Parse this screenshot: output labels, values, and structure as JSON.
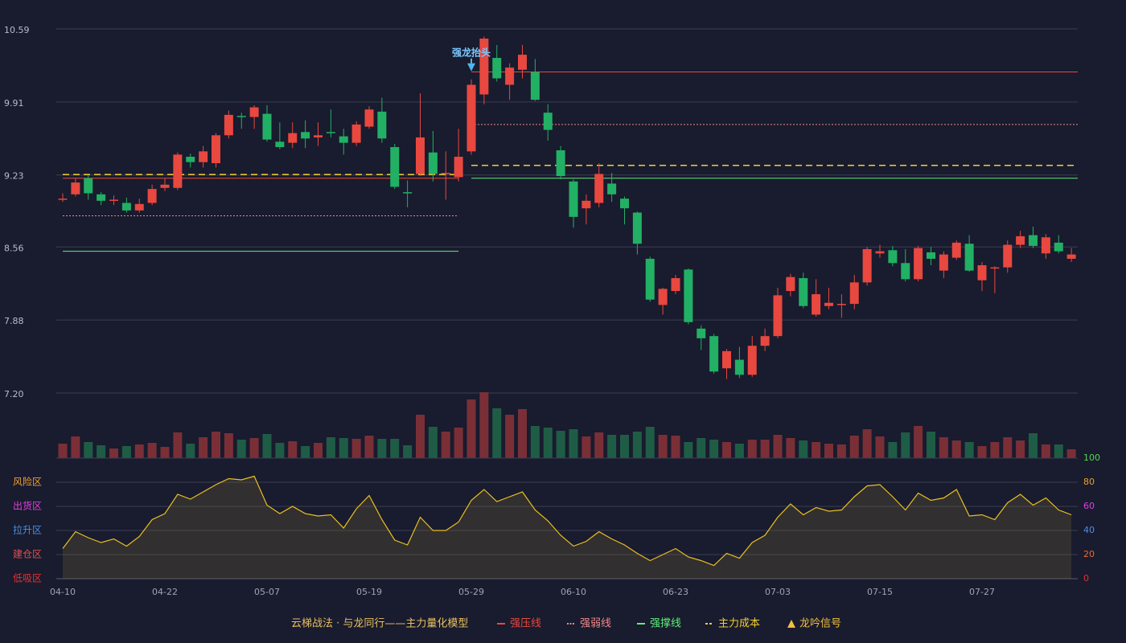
{
  "chart_data": [
    {
      "type": "candlestick",
      "title": "云梯战法 · 与龙同行——主力量化模型",
      "categories": [
        "04-10",
        null,
        null,
        null,
        null,
        null,
        null,
        null,
        "04-22",
        null,
        null,
        null,
        null,
        null,
        null,
        null,
        "05-07",
        null,
        null,
        null,
        null,
        null,
        null,
        null,
        "05-19",
        null,
        null,
        null,
        null,
        null,
        null,
        null,
        "05-29",
        null,
        null,
        null,
        null,
        null,
        null,
        null,
        "06-10",
        null,
        null,
        null,
        null,
        null,
        null,
        null,
        "06-23",
        null,
        null,
        null,
        null,
        null,
        null,
        null,
        "07-03",
        null,
        null,
        null,
        null,
        null,
        null,
        null,
        "07-15",
        null,
        null,
        null,
        null,
        null,
        null,
        null,
        "07-27",
        null,
        null,
        null,
        null,
        null,
        null,
        null
      ],
      "open": [
        9.0,
        9.05,
        9.2,
        9.05,
        8.99,
        8.97,
        8.9,
        8.97,
        9.11,
        9.11,
        9.4,
        9.35,
        9.34,
        9.6,
        9.78,
        9.77,
        9.8,
        9.54,
        9.53,
        9.63,
        9.58,
        9.63,
        9.59,
        9.53,
        9.68,
        9.82,
        9.49,
        9.07,
        9.24,
        9.44,
        9.24,
        9.21,
        9.45,
        9.98,
        10.32,
        10.07,
        10.21,
        10.19,
        9.81,
        9.46,
        9.17,
        8.92,
        8.97,
        9.15,
        9.01,
        8.88,
        8.45,
        8.02,
        8.15,
        8.35,
        7.8,
        7.73,
        7.43,
        7.51,
        7.37,
        7.64,
        7.73,
        8.15,
        8.27,
        7.93,
        8.01,
        8.03,
        8.03,
        8.23,
        8.5,
        8.53,
        8.41,
        8.26,
        8.51,
        8.34,
        8.46,
        8.59,
        8.25,
        8.36,
        8.37,
        8.58,
        8.67,
        8.5,
        8.6,
        8.45
      ],
      "high": [
        9.06,
        9.2,
        9.23,
        9.07,
        9.04,
        9.02,
        9.01,
        9.14,
        9.2,
        9.44,
        9.43,
        9.5,
        9.62,
        9.83,
        9.81,
        9.88,
        9.88,
        9.72,
        9.72,
        9.74,
        9.72,
        9.84,
        9.66,
        9.73,
        9.87,
        9.95,
        9.52,
        9.18,
        9.99,
        9.64,
        9.45,
        9.66,
        10.12,
        10.52,
        10.44,
        10.27,
        10.44,
        10.31,
        9.89,
        9.5,
        9.19,
        9.05,
        9.34,
        9.25,
        9.03,
        8.89,
        8.47,
        8.18,
        8.3,
        8.36,
        7.83,
        7.75,
        7.61,
        7.63,
        7.73,
        7.8,
        8.18,
        8.31,
        8.32,
        8.26,
        8.18,
        8.12,
        8.3,
        8.56,
        8.58,
        8.57,
        8.54,
        8.57,
        8.56,
        8.52,
        8.62,
        8.67,
        8.42,
        8.38,
        8.62,
        8.71,
        8.75,
        8.68,
        8.67,
        8.55
      ],
      "low": [
        8.98,
        9.03,
        9.0,
        8.95,
        8.95,
        8.88,
        8.88,
        8.95,
        9.08,
        9.09,
        9.3,
        9.3,
        9.3,
        9.57,
        9.66,
        9.66,
        9.54,
        9.47,
        9.48,
        9.48,
        9.5,
        9.58,
        9.42,
        9.5,
        9.66,
        9.53,
        9.1,
        8.93,
        9.22,
        9.17,
        9.0,
        9.17,
        9.42,
        9.89,
        10.1,
        9.93,
        10.13,
        9.92,
        9.55,
        9.19,
        8.74,
        8.77,
        8.93,
        8.98,
        8.77,
        8.49,
        8.05,
        7.93,
        8.12,
        7.84,
        7.6,
        7.38,
        7.33,
        7.34,
        7.35,
        7.59,
        7.71,
        8.1,
        7.99,
        7.91,
        7.98,
        7.9,
        7.98,
        8.2,
        8.46,
        8.38,
        8.24,
        8.24,
        8.39,
        8.27,
        8.44,
        8.33,
        8.15,
        8.13,
        8.32,
        8.55,
        8.55,
        8.45,
        8.5,
        8.42
      ],
      "close": [
        9.01,
        9.16,
        9.06,
        8.99,
        9.0,
        8.9,
        8.96,
        9.1,
        9.14,
        9.42,
        9.35,
        9.45,
        9.6,
        9.79,
        9.77,
        9.86,
        9.56,
        9.49,
        9.62,
        9.57,
        9.6,
        9.62,
        9.53,
        9.7,
        9.84,
        9.57,
        9.12,
        9.06,
        9.58,
        9.24,
        9.25,
        9.4,
        10.07,
        10.5,
        10.13,
        10.23,
        10.35,
        9.93,
        9.65,
        9.22,
        8.84,
        8.99,
        9.24,
        9.05,
        8.92,
        8.59,
        8.07,
        8.17,
        8.27,
        7.86,
        7.71,
        7.4,
        7.59,
        7.37,
        7.64,
        7.73,
        8.11,
        8.28,
        8.01,
        8.12,
        8.04,
        8.03,
        8.23,
        8.54,
        8.52,
        8.41,
        8.26,
        8.55,
        8.45,
        8.49,
        8.6,
        8.34,
        8.39,
        8.37,
        8.58,
        8.66,
        8.57,
        8.65,
        8.52,
        8.49
      ],
      "volume": [
        18,
        27,
        20,
        16,
        12,
        15,
        17,
        19,
        14,
        32,
        18,
        26,
        33,
        31,
        23,
        25,
        30,
        19,
        21,
        15,
        19,
        26,
        25,
        24,
        28,
        24,
        24,
        16,
        54,
        39,
        33,
        38,
        73,
        82,
        62,
        54,
        61,
        40,
        38,
        34,
        36,
        27,
        32,
        29,
        29,
        33,
        39,
        29,
        28,
        20,
        25,
        23,
        20,
        18,
        23,
        23,
        29,
        25,
        22,
        20,
        18,
        17,
        28,
        36,
        27,
        20,
        32,
        40,
        33,
        26,
        22,
        20,
        15,
        20,
        26,
        22,
        31,
        17,
        17,
        11
      ],
      "up_color": "#e8483f",
      "down_color": "#22b065",
      "up_volume_color": "#7a2f37",
      "down_volume_color": "#1f5c46",
      "ylim": [
        7.2,
        10.59
      ],
      "yticks": [
        10.59,
        9.91,
        9.23,
        8.56,
        7.88,
        {
          "value": 7.2,
          "label": "7.20"
        }
      ],
      "grid": true,
      "lines": [
        {
          "name": "强压线",
          "color": "#e8483f",
          "style": "solid",
          "segments": [
            {
              "from": 0,
              "to": 31,
              "value": 9.2
            },
            {
              "from": 32,
              "to": 79,
              "value": 10.19
            }
          ]
        },
        {
          "name": "强弱线",
          "color": "#f08a8a",
          "style": "dotted",
          "segments": [
            {
              "from": 0,
              "to": 31,
              "value": 8.85
            },
            {
              "from": 32,
              "to": 79,
              "value": 9.7
            }
          ]
        },
        {
          "name": "强撑线",
          "color": "#5ef07a",
          "style": "solid",
          "segments": [
            {
              "from": 0,
              "to": 31,
              "value": 8.52
            },
            {
              "from": 32,
              "to": 79,
              "value": 9.2
            }
          ]
        },
        {
          "name": "主力成本",
          "color": "#f0d030",
          "style": "dashed",
          "segments": [
            {
              "from": 0,
              "to": 31,
              "value": 9.235
            },
            {
              "from": 32,
              "to": 79,
              "value": 9.32
            }
          ]
        }
      ],
      "signal": {
        "name": "龙吟信号",
        "label": "强龙抬头",
        "index": 32,
        "color": "#4fb4f0",
        "legend_color": "#f0c040"
      }
    },
    {
      "type": "line",
      "values": [
        25,
        39,
        34,
        30,
        33,
        27,
        35,
        49,
        54,
        70,
        66,
        72,
        78,
        83,
        82,
        85,
        61,
        54,
        60,
        54,
        52,
        53,
        42,
        58,
        69,
        49,
        32,
        28,
        51,
        40,
        40,
        47,
        65,
        74,
        64,
        68,
        72,
        57,
        48,
        36,
        27,
        31,
        39,
        33,
        28,
        21,
        15,
        20,
        25,
        18,
        15,
        11,
        21,
        17,
        30,
        36,
        51,
        62,
        53,
        59,
        56,
        57,
        68,
        77,
        78,
        68,
        57,
        71,
        65,
        67,
        74,
        52,
        53,
        49,
        63,
        70,
        61,
        67,
        57,
        53
      ],
      "color": "#e8c020",
      "ylim": [
        0,
        100
      ],
      "yticks": [
        0,
        20,
        40,
        60,
        80,
        100
      ],
      "ytick_colors": [
        "#e83030",
        "#f06a30",
        "#4a90e2",
        "#e040e0",
        "#f0a030",
        "#4fd94f"
      ],
      "zones": [
        "风险区",
        "出货区",
        "拉升区",
        "建仓区",
        "低吸区"
      ],
      "zone_colors": [
        "#f0a030",
        "#e040e0",
        "#4a90e2",
        "#e05050",
        "#e83030"
      ]
    }
  ]
}
